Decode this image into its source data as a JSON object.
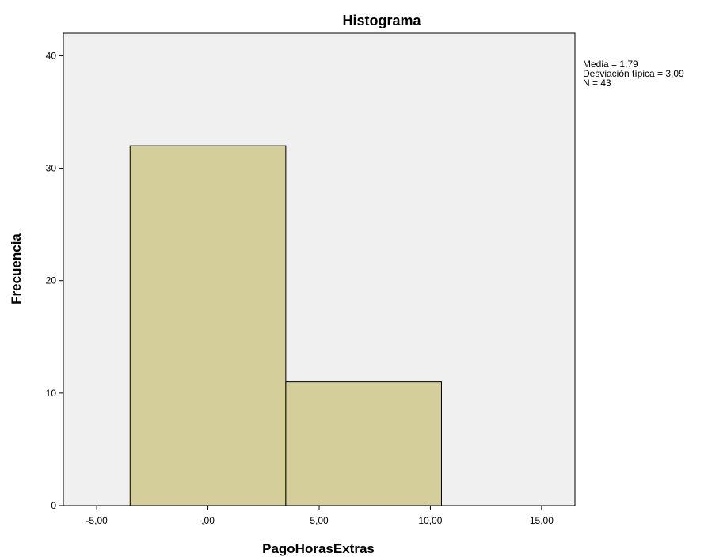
{
  "chart_data": {
    "type": "bar",
    "title": "Histograma",
    "xlabel": "PagoHorasExtras",
    "ylabel": "Frecuencia",
    "bins": [
      {
        "start": -3.5,
        "end": 3.5,
        "count": 32
      },
      {
        "start": 3.5,
        "end": 10.5,
        "count": 11
      }
    ],
    "values": [
      32,
      11
    ],
    "xlim": [
      -6.5,
      16.5
    ],
    "ylim": [
      0,
      42
    ],
    "x_ticks": [
      -5,
      0,
      5,
      10,
      15
    ],
    "x_tick_labels": [
      "-5,00",
      ",00",
      "5,00",
      "10,00",
      "15,00"
    ],
    "y_ticks": [
      0,
      10,
      20,
      30,
      40
    ],
    "y_tick_labels": [
      "0",
      "10",
      "20",
      "30",
      "40"
    ],
    "grid": false,
    "legend": "none",
    "stats": {
      "mean": "Media = 1,79",
      "std": "Desviación típica = 3,09",
      "n": "N = 43"
    },
    "colors": {
      "plot_background": "#f0f0f0",
      "bar_fill": "#d3ce9a",
      "bar_stroke": "#000000",
      "axis": "#000000"
    }
  }
}
